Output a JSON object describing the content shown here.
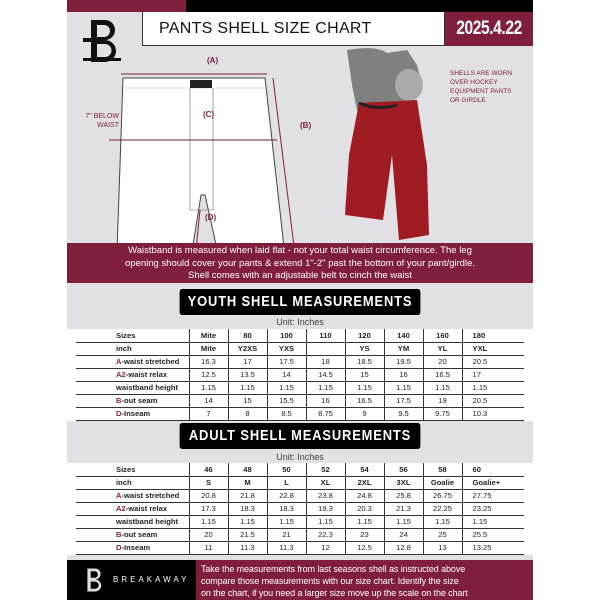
{
  "header": {
    "title": "PANTS SHELL SIZE CHART",
    "date": "2025.4.22"
  },
  "diagram": {
    "a": "(A)",
    "b": "(B)",
    "c": "(C)",
    "d": "(D)",
    "below_waist": [
      "7\" BELOW",
      "WAIST"
    ],
    "note": [
      "SHELLS ARE WORN",
      "OVER HOCKEY",
      "EQUIPMENT PANTS",
      "OR GIRDLE"
    ]
  },
  "colors": {
    "maroon": "#7f1f3b",
    "black": "#000000",
    "background": "#e1e1e5"
  },
  "info_band": [
    "Waistband is measured when laid flat - not your total waist circumference. The leg",
    "opening should cover your pants & extend 1\"-2\" past the bottom of your pant/girdle.",
    "Shell comes with an adjustable belt to cinch the waist"
  ],
  "youth": {
    "title": "YOUTH SHELL MEASUREMENTS",
    "unit": "Unit: Inches",
    "rows": [
      {
        "prefix": "",
        "label": "Sizes",
        "values": [
          "Mite",
          "80",
          "100",
          "110",
          "120",
          "140",
          "160",
          "180"
        ]
      },
      {
        "prefix": "",
        "label": "inch",
        "values": [
          "Mite",
          "Y2XS",
          "YXS",
          "",
          "YS",
          "YM",
          "YL",
          "YXL"
        ]
      },
      {
        "prefix": "A",
        "label": "-waist stretched",
        "values": [
          "16.3",
          "17",
          "17.5",
          "18",
          "18.5",
          "19.5",
          "20",
          "20.5"
        ]
      },
      {
        "prefix": "A2",
        "label": "-waist relax",
        "values": [
          "12.5",
          "13.5",
          "14",
          "14.5",
          "15",
          "16",
          "16.5",
          "17"
        ]
      },
      {
        "prefix": "",
        "label": "waistband height",
        "values": [
          "1.15",
          "1.15",
          "1.15",
          "1.15",
          "1.15",
          "1.15",
          "1.15",
          "1.15"
        ]
      },
      {
        "prefix": "B",
        "label": "-out seam",
        "values": [
          "14",
          "15",
          "15.5",
          "16",
          "16.5",
          "17.5",
          "19",
          "20.5"
        ]
      },
      {
        "prefix": "D",
        "label": "-Inseam",
        "values": [
          "7",
          "8",
          "8.5",
          "8.75",
          "9",
          "9.5",
          "9.75",
          "10.3"
        ]
      }
    ]
  },
  "adult": {
    "title": "ADULT SHELL MEASUREMENTS",
    "unit": "Unit: Inches",
    "rows": [
      {
        "prefix": "",
        "label": "Sizes",
        "values": [
          "46",
          "48",
          "50",
          "52",
          "54",
          "56",
          "58",
          "60"
        ]
      },
      {
        "prefix": "",
        "label": "inch",
        "values": [
          "S",
          "M",
          "L",
          "XL",
          "2XL",
          "3XL",
          "Goalie",
          "Goalie+"
        ]
      },
      {
        "prefix": "A",
        "label": "-waist stretched",
        "values": [
          "20.8",
          "21.8",
          "22.8",
          "23.8",
          "24.8",
          "25.8",
          "26.75",
          "27.75"
        ]
      },
      {
        "prefix": "A2",
        "label": "-waist relax",
        "values": [
          "17.3",
          "18.3",
          "18.3",
          "19.3",
          "20.3",
          "21.3",
          "22.25",
          "23.25"
        ]
      },
      {
        "prefix": "",
        "label": "waistband height",
        "values": [
          "1.15",
          "1.15",
          "1.15",
          "1.15",
          "1.15",
          "1.15",
          "1.15",
          "1.15"
        ]
      },
      {
        "prefix": "B",
        "label": "-out seam",
        "values": [
          "20",
          "21.5",
          "21",
          "22.3",
          "23",
          "24",
          "25",
          "25.5"
        ]
      },
      {
        "prefix": "D",
        "label": "-Inseam",
        "values": [
          "11",
          "11.3",
          "11.3",
          "12",
          "12.5",
          "12.8",
          "13",
          "13.25"
        ]
      }
    ]
  },
  "footer": {
    "brand": "BREAKAWAY",
    "text": [
      "Take the measurements from last seasons shell as instructed above",
      "compare those measurements  with our size chart. Identify the size",
      "on the chart, if you need a larger size move up the scale on the chart"
    ]
  }
}
